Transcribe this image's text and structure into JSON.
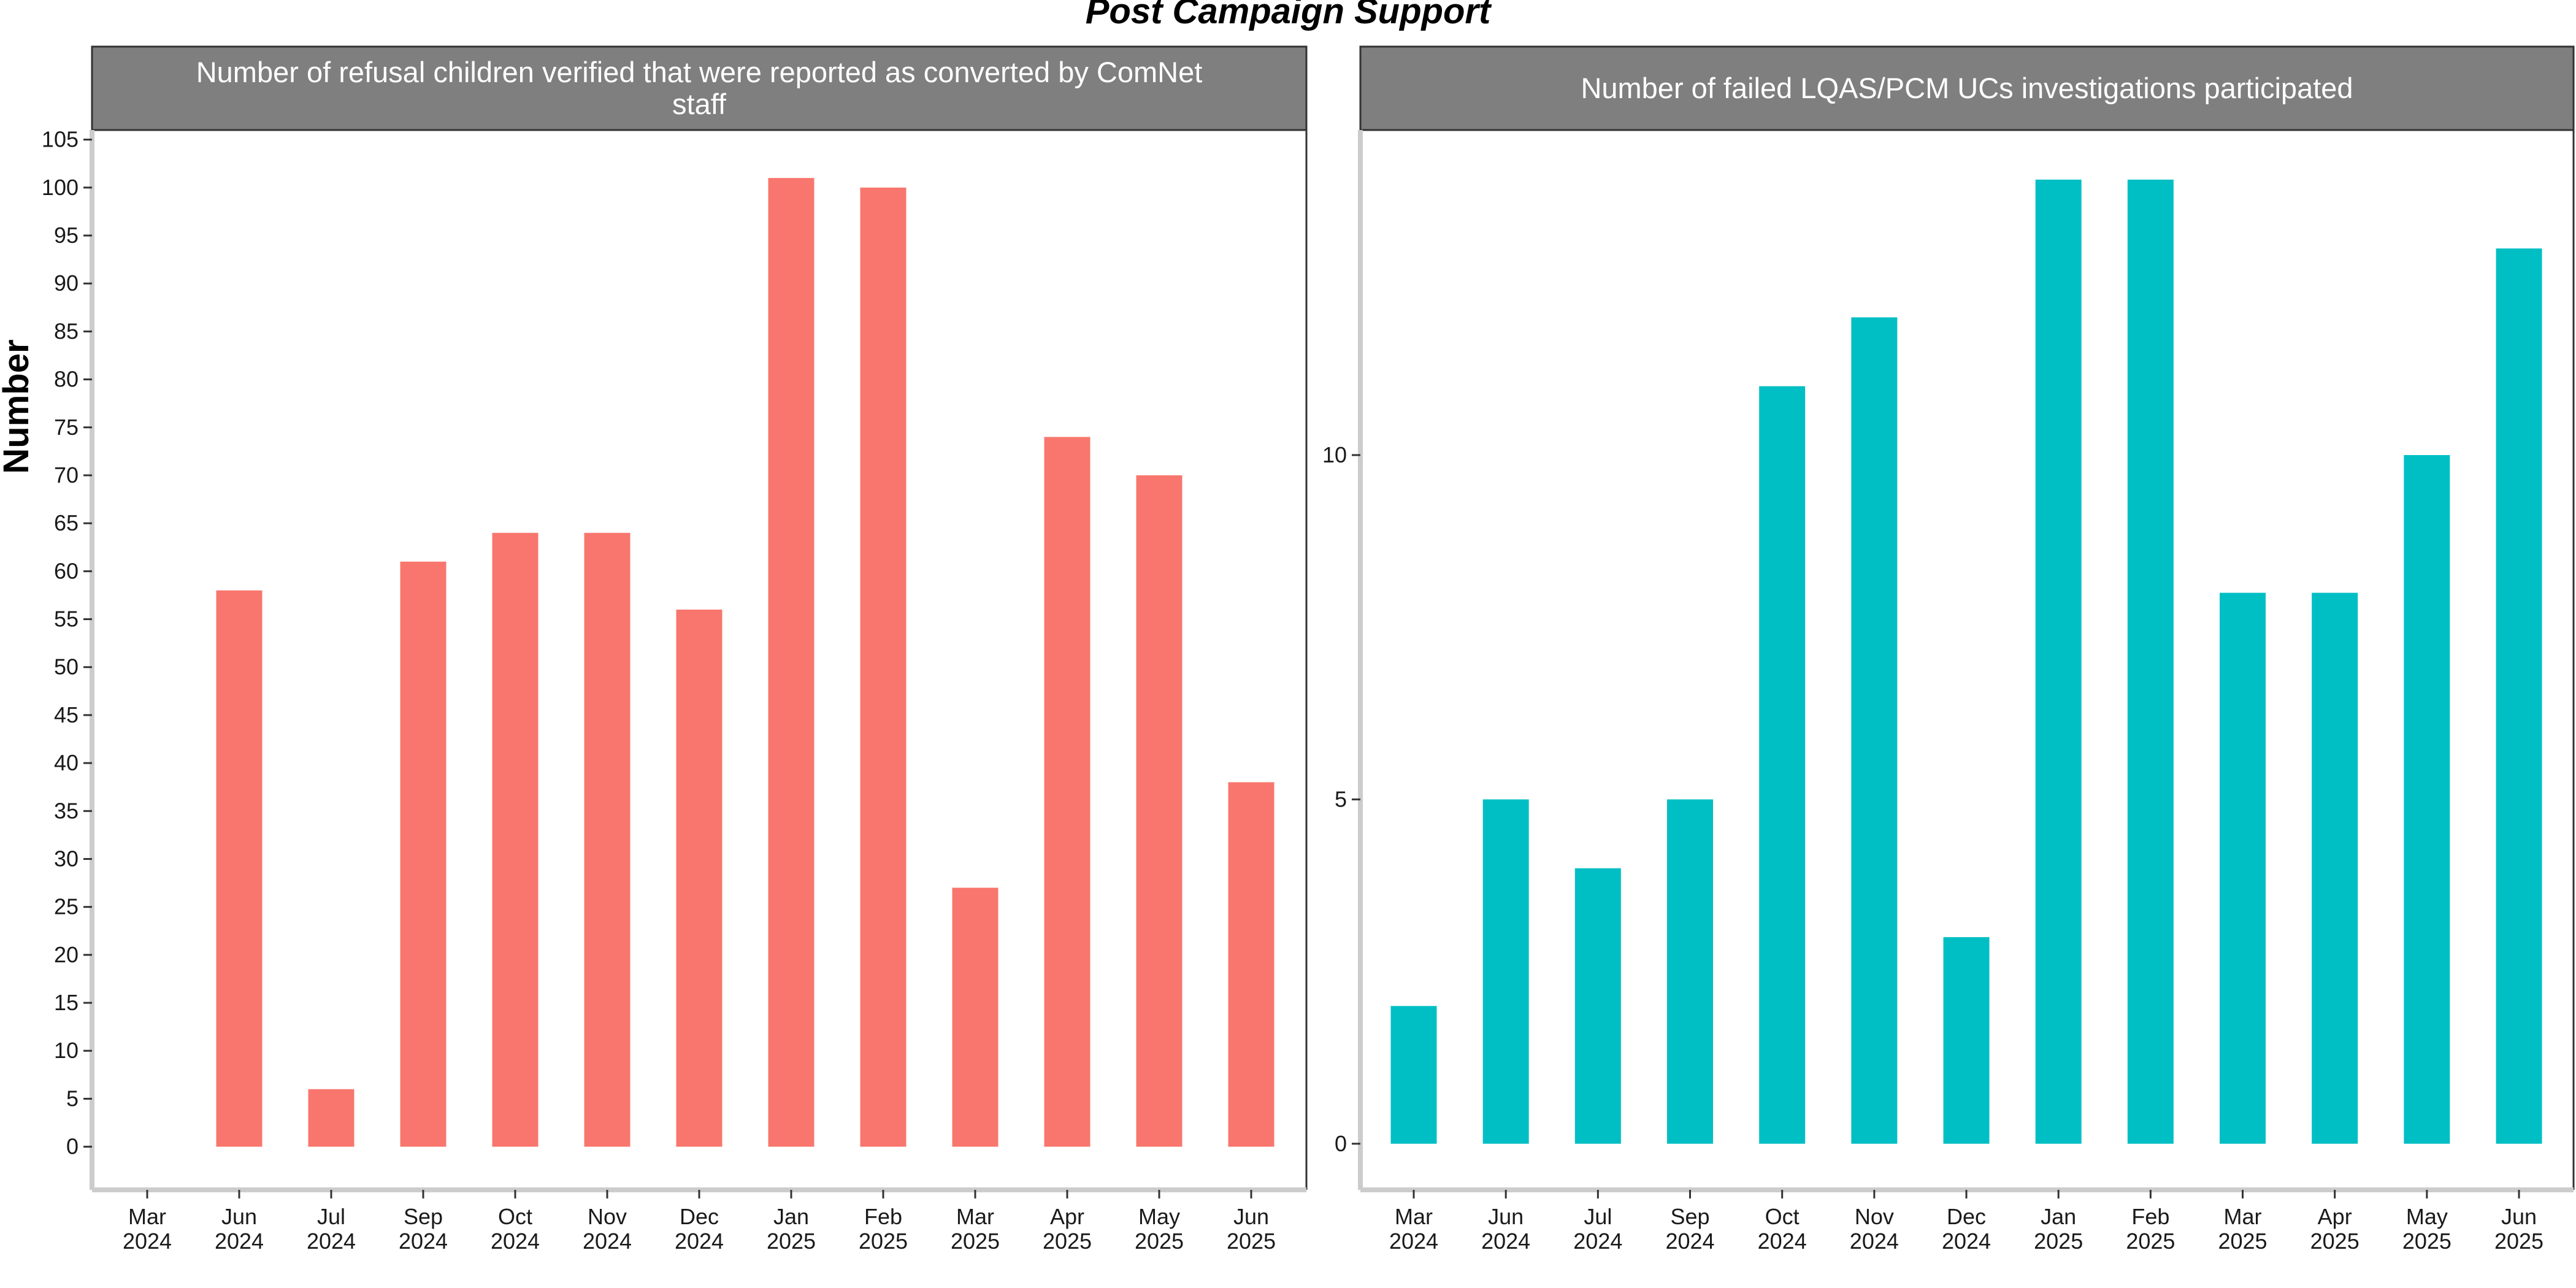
{
  "title": "Post Campaign Support",
  "y_axis_label": "Number",
  "colors": {
    "panel1_bar": "#F8766D",
    "panel2_bar": "#00BFC4",
    "strip_bg": "#7F7F7F",
    "strip_text": "#FFFFFF"
  },
  "chart_data": [
    {
      "type": "bar",
      "title": "Number of refusal children verified that were reported as converted by ComNet staff",
      "title_lines": [
        "Number of refusal children verified that were reported as converted by ComNet",
        "staff"
      ],
      "ylabel": "Number",
      "categories": [
        [
          "Mar",
          "2024"
        ],
        [
          "Jun",
          "2024"
        ],
        [
          "Jul",
          "2024"
        ],
        [
          "Sep",
          "2024"
        ],
        [
          "Oct",
          "2024"
        ],
        [
          "Nov",
          "2024"
        ],
        [
          "Dec",
          "2024"
        ],
        [
          "Jan",
          "2025"
        ],
        [
          "Feb",
          "2025"
        ],
        [
          "Mar",
          "2025"
        ],
        [
          "Apr",
          "2025"
        ],
        [
          "May",
          "2025"
        ],
        [
          "Jun",
          "2025"
        ]
      ],
      "values": [
        null,
        58,
        6,
        61,
        64,
        64,
        56,
        101,
        100,
        27,
        74,
        70,
        38
      ],
      "yticks": [
        0,
        5,
        10,
        15,
        20,
        25,
        30,
        35,
        40,
        45,
        50,
        55,
        60,
        65,
        70,
        75,
        80,
        85,
        90,
        95,
        100,
        105
      ],
      "ylim": [
        -4.5,
        106
      ],
      "grid": false,
      "color": "#F8766D"
    },
    {
      "type": "bar",
      "title": "Number of failed LQAS/PCM UCs investigations participated",
      "title_lines": [
        "Number of failed LQAS/PCM UCs investigations participated"
      ],
      "ylabel": "Number",
      "categories": [
        [
          "Mar",
          "2024"
        ],
        [
          "Jun",
          "2024"
        ],
        [
          "Jul",
          "2024"
        ],
        [
          "Sep",
          "2024"
        ],
        [
          "Oct",
          "2024"
        ],
        [
          "Nov",
          "2024"
        ],
        [
          "Dec",
          "2024"
        ],
        [
          "Jan",
          "2025"
        ],
        [
          "Feb",
          "2025"
        ],
        [
          "Mar",
          "2025"
        ],
        [
          "Apr",
          "2025"
        ],
        [
          "May",
          "2025"
        ],
        [
          "Jun",
          "2025"
        ]
      ],
      "values": [
        2,
        5,
        4,
        5,
        11,
        12,
        3,
        14,
        14,
        8,
        8,
        10,
        13
      ],
      "yticks": [
        0,
        5,
        10
      ],
      "ylim": [
        -0.67,
        14.72
      ],
      "grid": false,
      "color": "#00BFC4"
    }
  ]
}
